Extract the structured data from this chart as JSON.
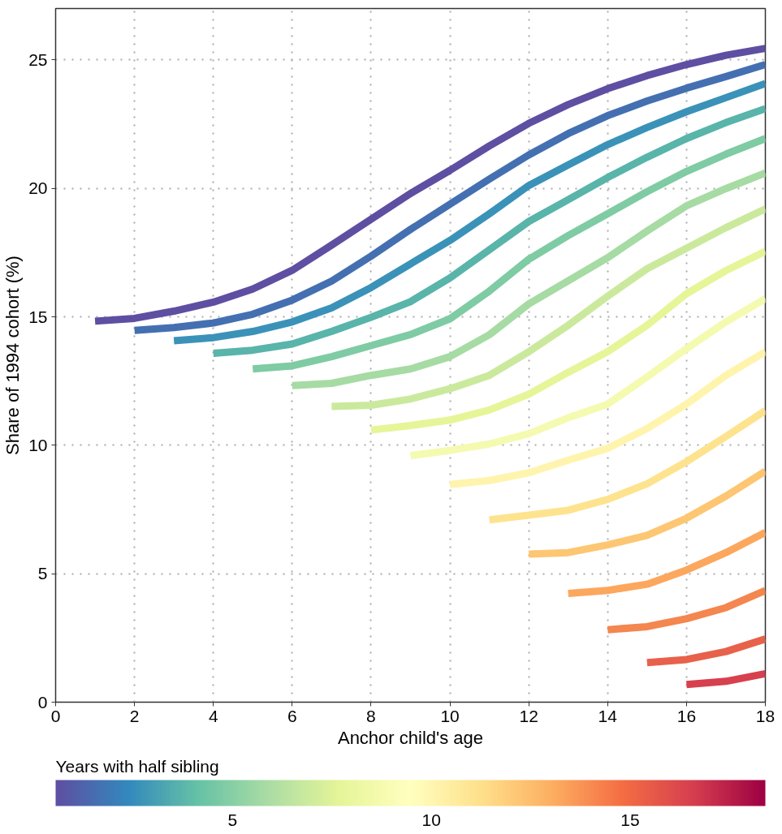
{
  "chart_data": {
    "type": "line",
    "xlabel": "Anchor child's age",
    "ylabel": "Share of 1994 cohort (%)",
    "clabel": "Years with half sibling",
    "xlim": [
      0,
      18
    ],
    "ylim": [
      0,
      27
    ],
    "xticks": [
      0,
      2,
      4,
      6,
      8,
      10,
      12,
      14,
      16,
      18
    ],
    "yticks": [
      0,
      5,
      10,
      15,
      20,
      25
    ],
    "clim": [
      0.55,
      18.4
    ],
    "cticks": [
      5,
      10,
      15
    ],
    "grid": true,
    "series": [
      {
        "color": "#5e4fa2",
        "x": [
          1,
          2,
          3,
          4,
          5,
          6,
          7,
          8,
          9,
          10,
          11,
          12,
          13,
          14,
          15,
          16,
          17,
          18
        ],
        "values": [
          14.83,
          14.94,
          15.22,
          15.57,
          16.08,
          16.81,
          17.79,
          18.8,
          19.8,
          20.7,
          21.65,
          22.53,
          23.26,
          23.88,
          24.39,
          24.82,
          25.18,
          25.45
        ]
      },
      {
        "color": "#4470b1",
        "x": [
          2,
          3,
          4,
          5,
          6,
          7,
          8,
          9,
          10,
          11,
          12,
          13,
          14,
          15,
          16,
          17,
          18
        ],
        "values": [
          14.47,
          14.58,
          14.76,
          15.1,
          15.65,
          16.39,
          17.36,
          18.4,
          19.38,
          20.36,
          21.3,
          22.13,
          22.83,
          23.4,
          23.9,
          24.35,
          24.82
        ]
      },
      {
        "color": "#3b92b8",
        "x": [
          3,
          4,
          5,
          6,
          7,
          8,
          9,
          10,
          11,
          12,
          13,
          14,
          15,
          16,
          17,
          18
        ],
        "values": [
          14.07,
          14.19,
          14.43,
          14.8,
          15.35,
          16.14,
          17.06,
          17.97,
          19.01,
          20.11,
          20.91,
          21.7,
          22.37,
          22.98,
          23.53,
          24.08
        ]
      },
      {
        "color": "#59b4aa",
        "x": [
          4,
          5,
          6,
          7,
          8,
          9,
          10,
          11,
          12,
          13,
          14,
          15,
          16,
          17,
          18
        ],
        "values": [
          13.58,
          13.7,
          13.94,
          14.43,
          14.98,
          15.59,
          16.51,
          17.61,
          18.71,
          19.56,
          20.42,
          21.21,
          21.94,
          22.56,
          23.1
        ]
      },
      {
        "color": "#7ecba4",
        "x": [
          5,
          6,
          7,
          8,
          9,
          10,
          11,
          12,
          13,
          14,
          15,
          16,
          17,
          18
        ],
        "values": [
          12.97,
          13.09,
          13.45,
          13.88,
          14.31,
          14.92,
          16.0,
          17.24,
          18.16,
          19.01,
          19.87,
          20.66,
          21.33,
          21.94
        ]
      },
      {
        "color": "#a6dba4",
        "x": [
          6,
          7,
          8,
          9,
          10,
          11,
          12,
          13,
          14,
          15,
          16,
          17,
          18
        ],
        "values": [
          12.32,
          12.41,
          12.72,
          12.97,
          13.45,
          14.3,
          15.5,
          16.4,
          17.3,
          18.34,
          19.32,
          19.99,
          20.6
        ]
      },
      {
        "color": "#cbe99d",
        "x": [
          7,
          8,
          9,
          10,
          11,
          12,
          13,
          14,
          15,
          16,
          17,
          18
        ],
        "values": [
          11.51,
          11.56,
          11.8,
          12.2,
          12.72,
          13.64,
          14.67,
          15.8,
          16.87,
          17.67,
          18.47,
          19.2
        ]
      },
      {
        "color": "#e6f598",
        "x": [
          8,
          9,
          10,
          11,
          12,
          13,
          14,
          15,
          16,
          17,
          18
        ],
        "values": [
          10.59,
          10.77,
          10.98,
          11.37,
          11.99,
          12.84,
          13.64,
          14.67,
          15.9,
          16.8,
          17.55
        ]
      },
      {
        "color": "#f4fab0",
        "x": [
          9,
          10,
          11,
          12,
          13,
          14,
          15,
          16,
          17,
          18
        ],
        "values": [
          9.6,
          9.8,
          10.05,
          10.45,
          11.07,
          11.6,
          12.66,
          13.76,
          14.8,
          15.71
        ]
      },
      {
        "color": "#fff4ad",
        "x": [
          10,
          11,
          12,
          13,
          14,
          15,
          16,
          17,
          18
        ],
        "values": [
          8.47,
          8.63,
          8.93,
          9.42,
          9.88,
          10.65,
          11.6,
          12.72,
          13.64
        ]
      },
      {
        "color": "#fee38f",
        "x": [
          11,
          12,
          13,
          14,
          15,
          16,
          17,
          18
        ],
        "values": [
          7.1,
          7.28,
          7.47,
          7.89,
          8.5,
          9.36,
          10.34,
          11.35
        ]
      },
      {
        "color": "#fdc673",
        "x": [
          12,
          13,
          14,
          15,
          16,
          17,
          18
        ],
        "values": [
          5.76,
          5.82,
          6.12,
          6.49,
          7.16,
          8.02,
          8.99
        ]
      },
      {
        "color": "#fca75e",
        "x": [
          13,
          14,
          15,
          16,
          17,
          18
        ],
        "values": [
          4.23,
          4.35,
          4.59,
          5.14,
          5.82,
          6.61
        ]
      },
      {
        "color": "#f4864f",
        "x": [
          14,
          15,
          16,
          17,
          18
        ],
        "values": [
          2.82,
          2.94,
          3.25,
          3.68,
          4.35
        ]
      },
      {
        "color": "#e8614a",
        "x": [
          15,
          16,
          17,
          18
        ],
        "values": [
          1.54,
          1.66,
          1.97,
          2.46
        ]
      },
      {
        "color": "#d7404e",
        "x": [
          16,
          17,
          18
        ],
        "values": [
          0.69,
          0.81,
          1.11
        ]
      }
    ]
  }
}
